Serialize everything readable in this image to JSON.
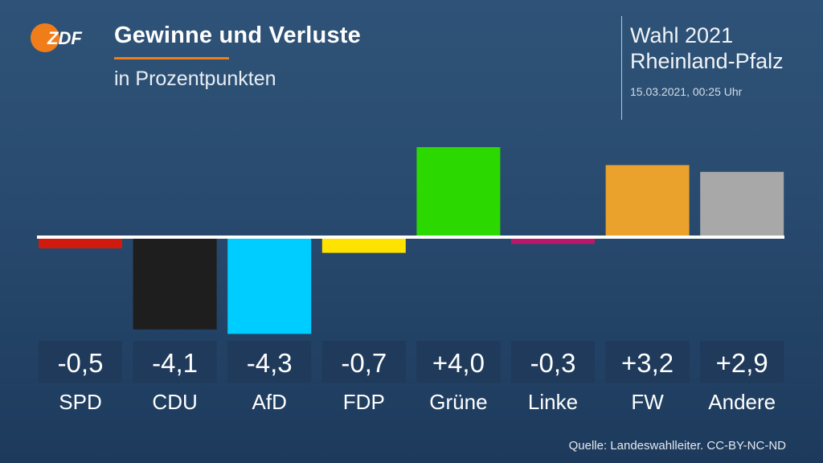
{
  "header": {
    "title": "Gewinne und Verluste",
    "subtitle": "in Prozentpunkten",
    "election_line1": "Wahl 2021",
    "election_line2": "Rheinland-Pfalz",
    "timestamp": "15.03.2021, 00:25 Uhr",
    "logo_text": "ZDF"
  },
  "colors": {
    "accent": "#f07d1a",
    "label_box": "#1f3a5a"
  },
  "source": "Quelle: Landeswahlleiter. CC-BY-NC-ND",
  "chart_data": {
    "type": "bar",
    "title": "Gewinne und Verluste",
    "subtitle": "in Prozentpunkten",
    "categories": [
      "SPD",
      "CDU",
      "AfD",
      "FDP",
      "Grüne",
      "Linke",
      "FW",
      "Andere"
    ],
    "values": [
      -0.5,
      -4.1,
      -4.3,
      -0.7,
      4.0,
      -0.3,
      3.2,
      2.9
    ],
    "value_labels": [
      "-0,5",
      "-4,1",
      "-4,3",
      "-0,7",
      "+4,0",
      "-0,3",
      "+3,2",
      "+2,9"
    ],
    "colors": [
      "#d11a0e",
      "#1e1e1e",
      "#00cdff",
      "#ffe300",
      "#2bd800",
      "#b8196a",
      "#eaa22c",
      "#a8a8a8"
    ],
    "xlabel": "",
    "ylabel": "",
    "grid": false,
    "legend": "none"
  }
}
